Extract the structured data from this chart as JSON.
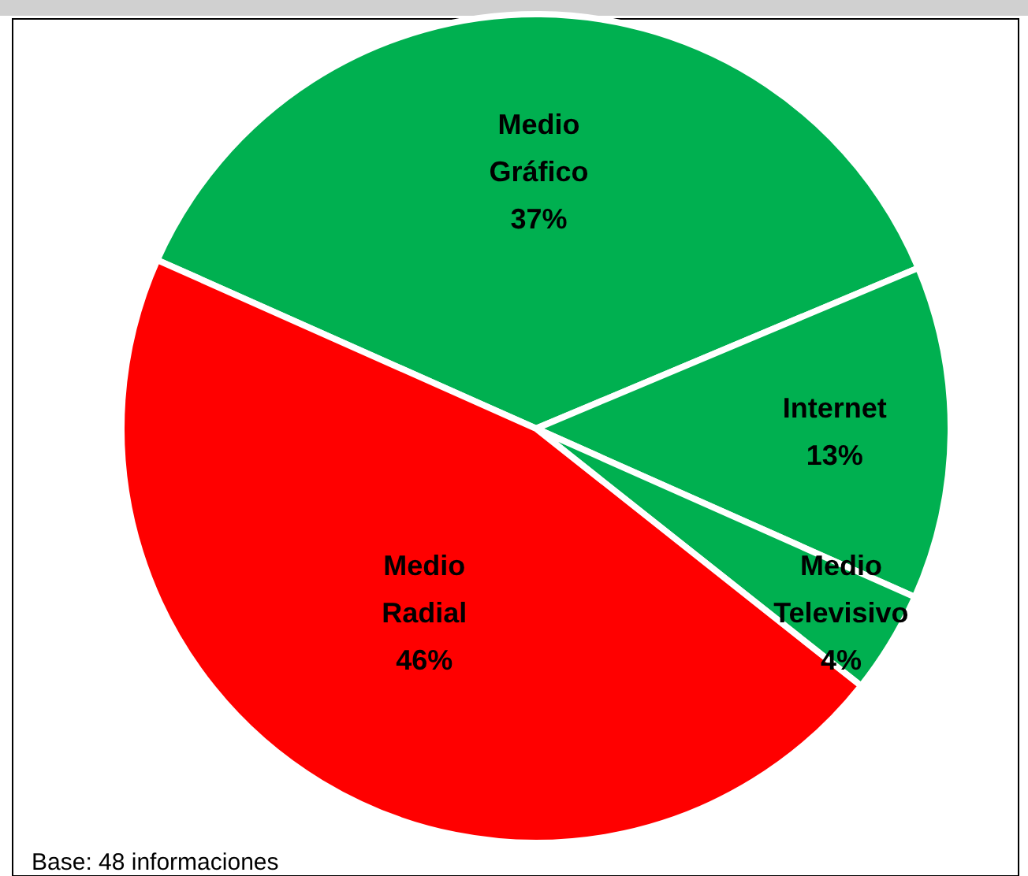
{
  "chart_data": {
    "type": "pie",
    "categories": [
      "Medio Gráfico",
      "Internet",
      "Medio Televisivo",
      "Medio Radial"
    ],
    "values": [
      37,
      13,
      4,
      46
    ],
    "colors": [
      "#00b050",
      "#00b050",
      "#00b050",
      "#ff0000"
    ],
    "value_labels": [
      "37%",
      "13%",
      "4%",
      "46%"
    ],
    "annotations": [
      "Base: 48 informaciones"
    ]
  }
}
